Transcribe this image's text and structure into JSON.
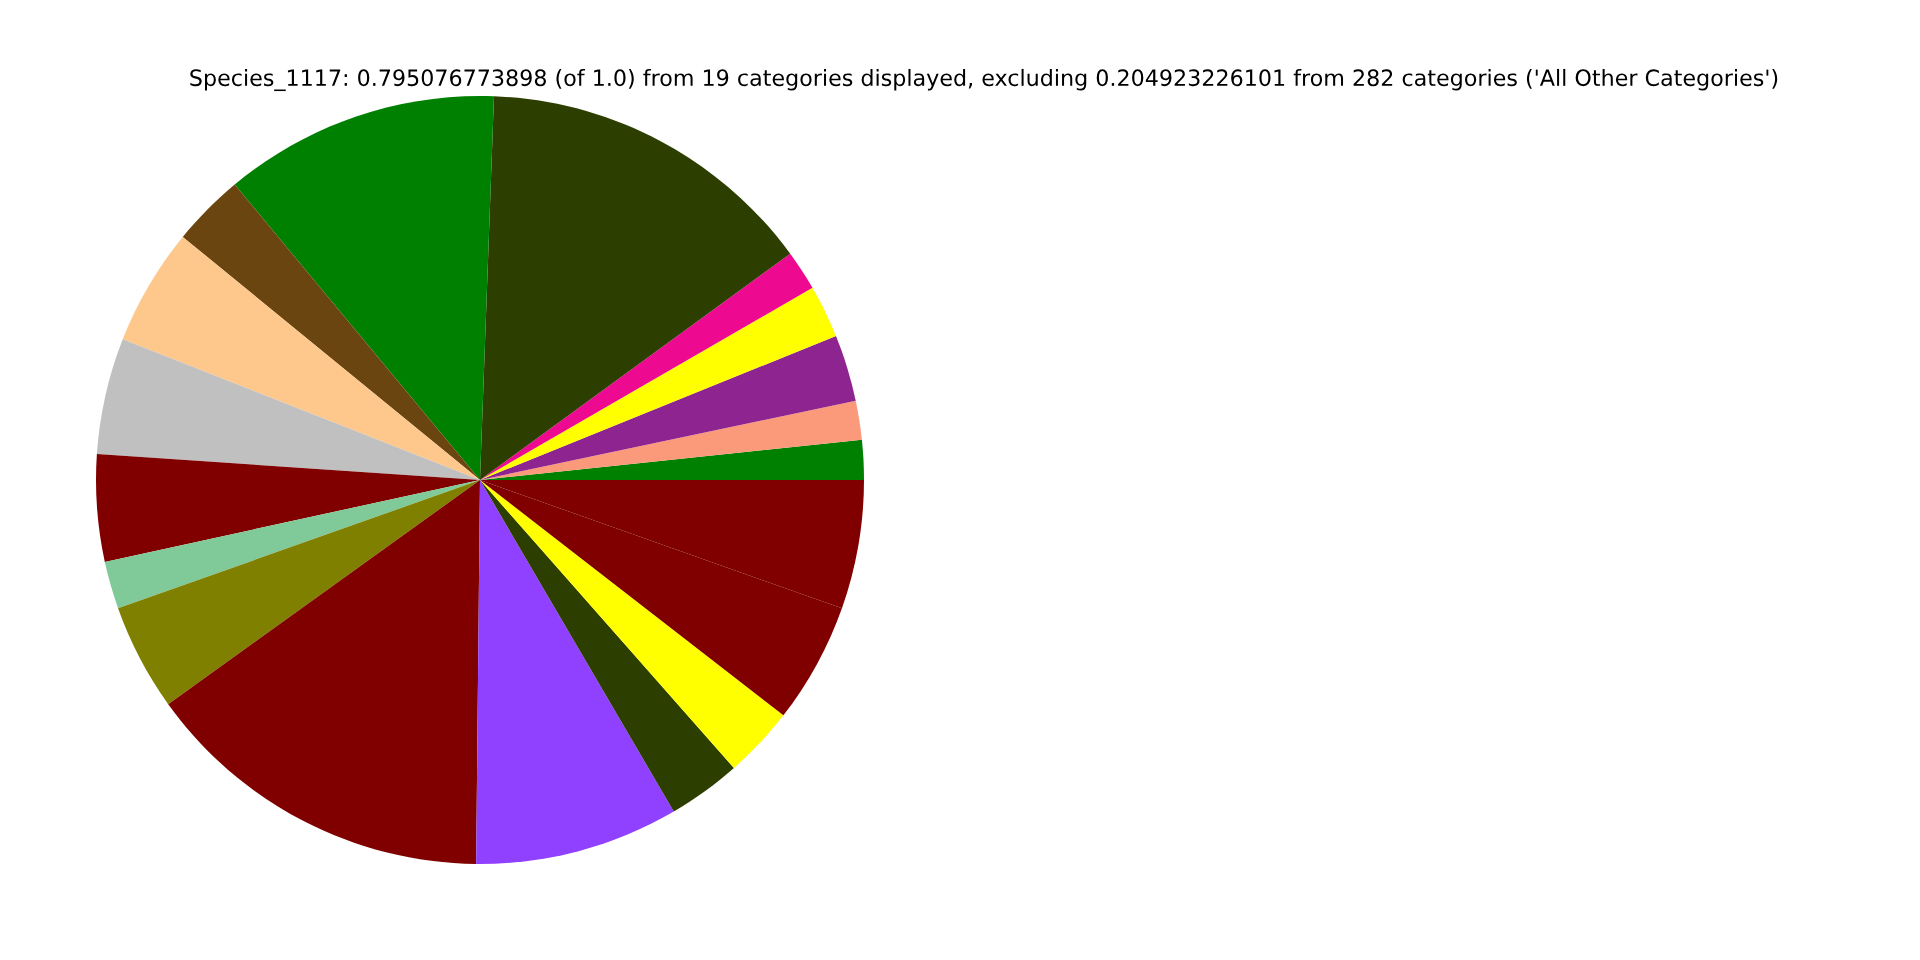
{
  "chart_data": {
    "type": "pie",
    "title": "Species_1117: 0.795076773898 (of 1.0) from 19 categories displayed, excluding 0.204923226101 from 282 categories ('All Other Categories')",
    "categories": [
      null,
      null,
      null,
      null,
      null,
      null,
      null,
      null,
      null,
      null,
      null,
      null,
      null,
      null,
      null,
      null,
      null,
      null,
      null
    ],
    "values": [
      1.67,
      1.64,
      2.81,
      2.22,
      1.69,
      14.39,
      11.61,
      3.06,
      4.94,
      4.89,
      4.5,
      2.0,
      4.5,
      14.92,
      8.58,
      3.08,
      3.0,
      5.08,
      5.42
    ],
    "colors": [
      "#008000",
      "#fa9a7a",
      "#8e2490",
      "#ffff00",
      "#ee0a90",
      "#2d3f00",
      "#008000",
      "#6b4510",
      "#fec88c",
      "#c0c0c0",
      "#800000",
      "#7fca98",
      "#808000",
      "#800000",
      "#9040ff",
      "#2d3f00",
      "#ffff00",
      "#800000",
      "#800000"
    ]
  }
}
